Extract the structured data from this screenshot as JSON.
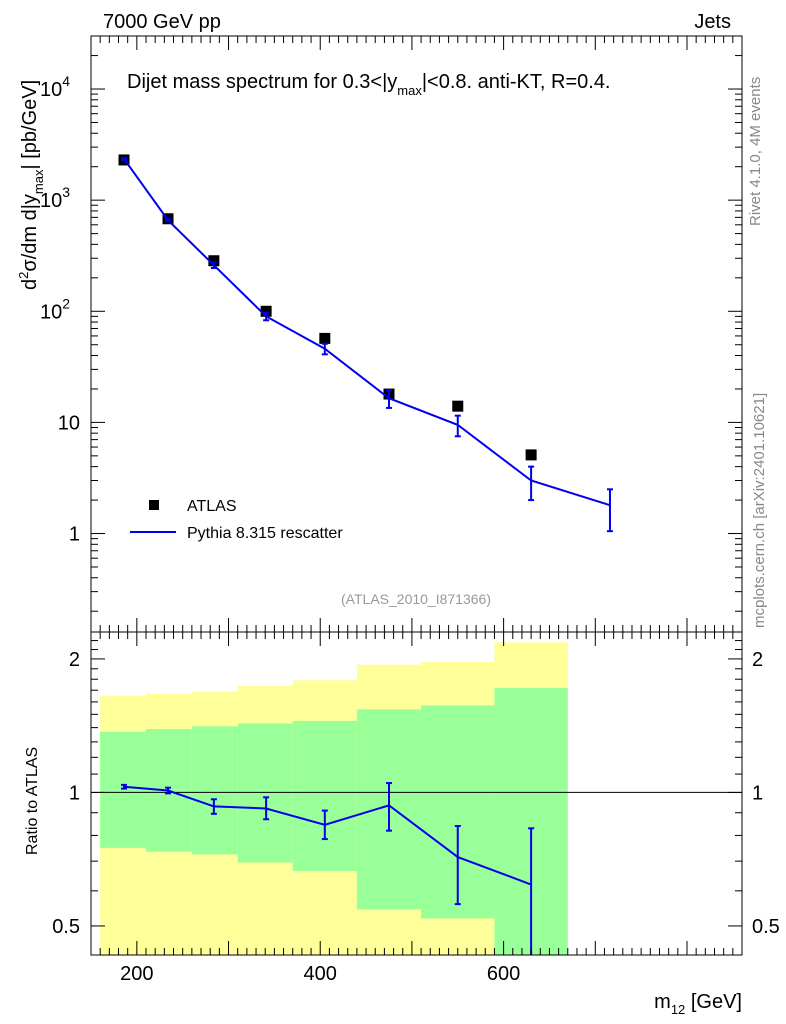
{
  "header": {
    "left": "7000 GeV pp",
    "right": "Jets"
  },
  "side_labels": {
    "rivet": "Rivet 4.1.0,  4M events",
    "mcplots": "mcplots.cern.ch [arXiv:2401.10621]"
  },
  "colors": {
    "data": "#000000",
    "mc": "#0000ee",
    "band_outer": "#ffff99",
    "band_inner": "#99ff99",
    "ref_label": "#999999",
    "side_label": "#888888"
  },
  "chart_data": [
    {
      "type": "scatter",
      "id": "main",
      "title": {
        "pre": "Dijet mass spectrum for 0.3<|y",
        "sub": "max",
        "post": "|<0.8.  anti-KT, R=0.4."
      },
      "ylabel": {
        "p1": "d",
        "sup": "2",
        "p2": "σ/dm d|y",
        "sub": "max",
        "p3": "| [pb/GeV]"
      },
      "yscale": "log",
      "ylim": [
        0.13,
        30000
      ],
      "xlim": [
        150,
        860
      ],
      "yticks": [
        {
          "value": 1,
          "label": "1"
        },
        {
          "value": 10,
          "label": "10"
        },
        {
          "value": 100,
          "label": "10",
          "exp": "2"
        },
        {
          "value": 1000,
          "label": "10",
          "exp": "3"
        },
        {
          "value": 10000,
          "label": "10",
          "exp": "4"
        }
      ],
      "reference_label": "(ATLAS_2010_I871366)",
      "legend": [
        {
          "name": "ATLAS",
          "marker": "square"
        },
        {
          "name": "Pythia 8.315 rescatter",
          "marker": "line"
        }
      ],
      "series": [
        {
          "name": "ATLAS",
          "x": [
            186,
            234,
            284,
            341,
            405,
            475,
            550,
            630
          ],
          "y": [
            2300,
            680,
            285,
            100,
            57,
            18,
            14,
            5.1
          ]
        },
        {
          "name": "Pythia 8.315 rescatter",
          "x": [
            186,
            234,
            284,
            341,
            405,
            475,
            550,
            630,
            716
          ],
          "y": [
            2350,
            660,
            260,
            90,
            46,
            16.5,
            9.5,
            3.0,
            1.8
          ],
          "yerr_low": [
            2300,
            645,
            245,
            83,
            41,
            13.5,
            7.5,
            2.0,
            1.05
          ],
          "yerr_high": [
            2400,
            675,
            275,
            97,
            51,
            19.5,
            11.5,
            4.0,
            2.5
          ]
        }
      ]
    },
    {
      "type": "scatter",
      "id": "ratio",
      "ylabel": "Ratio to ATLAS",
      "xlabel": {
        "p1": "m",
        "sub": "12",
        "p2": " [GeV]"
      },
      "yscale": "log",
      "ylim": [
        0.43,
        2.3
      ],
      "xlim": [
        150,
        860
      ],
      "xticks": [
        {
          "value": 200,
          "label": "200"
        },
        {
          "value": 400,
          "label": "400"
        },
        {
          "value": 600,
          "label": "600"
        }
      ],
      "yticks": [
        {
          "value": 0.5,
          "label": "0.5"
        },
        {
          "value": 1,
          "label": "1"
        },
        {
          "value": 2,
          "label": "2"
        }
      ],
      "bands": {
        "bin_edges": [
          160,
          210,
          260,
          310,
          370,
          440,
          510,
          590,
          670
        ],
        "outer_low": [
          0.36,
          0.36,
          0.36,
          0.36,
          0.36,
          0.36,
          0.36,
          0.4
        ],
        "outer_high": [
          1.65,
          1.67,
          1.69,
          1.74,
          1.79,
          1.94,
          1.97,
          2.18
        ],
        "inner_low": [
          0.75,
          0.735,
          0.725,
          0.695,
          0.665,
          0.545,
          0.52,
          0.43
        ],
        "inner_high": [
          1.37,
          1.39,
          1.41,
          1.43,
          1.45,
          1.54,
          1.57,
          1.72
        ]
      },
      "series": [
        {
          "name": "Pythia 8.315 rescatter / ATLAS",
          "x": [
            186,
            234,
            284,
            341,
            405,
            475,
            550,
            630
          ],
          "y": [
            1.03,
            1.01,
            0.93,
            0.92,
            0.845,
            0.935,
            0.715,
            0.62
          ],
          "yerr_low": [
            1.02,
            0.995,
            0.895,
            0.87,
            0.785,
            0.82,
            0.56,
            0.4
          ],
          "yerr_high": [
            1.04,
            1.025,
            0.965,
            0.975,
            0.91,
            1.05,
            0.84,
            0.83
          ]
        }
      ]
    }
  ]
}
